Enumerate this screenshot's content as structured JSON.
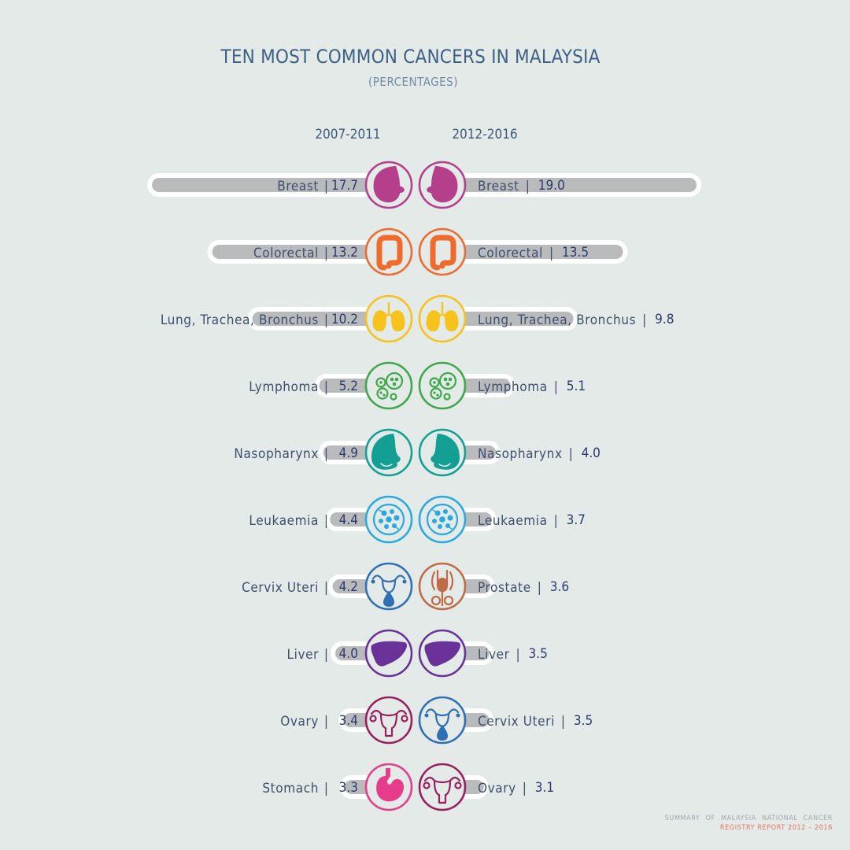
{
  "header": {
    "title": "TEN MOST COMMON CANCERS IN MALAYSIA",
    "subtitle": "(PERCENTAGES)"
  },
  "chart_data": {
    "type": "bar",
    "title": "TEN MOST COMMON CANCERS IN MALAYSIA",
    "subtitle": "(PERCENTAGES)",
    "series": [
      {
        "name": "2007-2011",
        "categories": [
          "Breast",
          "Colorectal",
          "Lung, Trachea, Bronchus",
          "Lymphoma",
          "Nasopharynx",
          "Leukaemia",
          "Cervix Uteri",
          "Liver",
          "Ovary",
          "Stomach"
        ],
        "values": [
          17.7,
          13.2,
          10.2,
          5.2,
          4.9,
          4.4,
          4.2,
          4.0,
          3.4,
          3.3
        ],
        "icons": [
          "breast-icon",
          "colorectal-icon",
          "lung-icon",
          "lymphoma-icon",
          "nasopharynx-icon",
          "leukaemia-icon",
          "cervix-uteri-icon",
          "liver-icon",
          "ovary-icon",
          "stomach-icon"
        ],
        "colors": [
          "#b63f8c",
          "#ef6b2d",
          "#f6c21c",
          "#3ea84a",
          "#139f94",
          "#29a9e2",
          "#2f6fb6",
          "#6a3199",
          "#9a1f5e",
          "#e63c8c"
        ]
      },
      {
        "name": "2012-2016",
        "categories": [
          "Breast",
          "Colorectal",
          "Lung, Trachea, Bronchus",
          "Lymphoma",
          "Nasopharynx",
          "Leukaemia",
          "Prostate",
          "Liver",
          "Cervix Uteri",
          "Ovary"
        ],
        "values": [
          19.0,
          13.5,
          9.8,
          5.1,
          4.0,
          3.7,
          3.6,
          3.5,
          3.5,
          3.1
        ],
        "icons": [
          "breast-icon",
          "colorectal-icon",
          "lung-icon",
          "lymphoma-icon",
          "nasopharynx-icon",
          "leukaemia-icon",
          "prostate-icon",
          "liver-icon",
          "cervix-uteri-icon",
          "ovary-icon"
        ],
        "colors": [
          "#b63f8c",
          "#ef6b2d",
          "#f6c21c",
          "#3ea84a",
          "#139f94",
          "#29a9e2",
          "#c06a48",
          "#6a3199",
          "#2f6fb6",
          "#9a1f5e"
        ]
      }
    ],
    "colors": {
      "bar": "#b9babb",
      "bar_outline": "#ffffff",
      "background": "#e3eae7"
    }
  },
  "footer": {
    "line1": "SUMMARY OF MALAYSIA NATIONAL CANCER",
    "line2": "REGISTRY REPORT 2012 – 2016"
  }
}
